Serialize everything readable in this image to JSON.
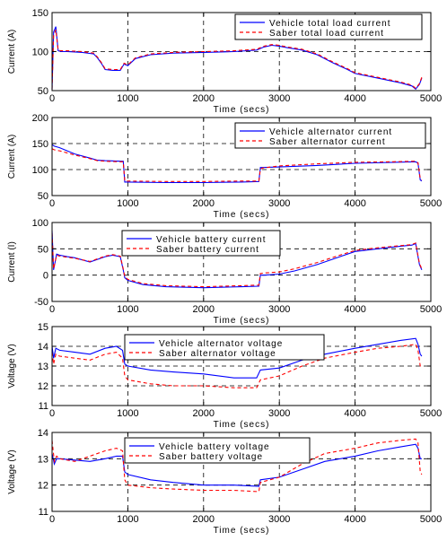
{
  "chart_data": [
    {
      "type": "line",
      "xlabel": "Time (secs)",
      "ylabel": "Current (A)",
      "xlim": [
        0,
        5000
      ],
      "ylim": [
        50,
        150
      ],
      "xticks": [
        0,
        1000,
        2000,
        3000,
        4000,
        5000
      ],
      "yticks": [
        50,
        100,
        150
      ],
      "grid": "dashed",
      "legend_position": "top-right",
      "series": [
        {
          "name": "Vehicle total load current",
          "color": "#0000ff",
          "style": "solid",
          "x": [
            0,
            20,
            50,
            80,
            120,
            200,
            400,
            550,
            600,
            650,
            700,
            800,
            900,
            950,
            1000,
            1100,
            1300,
            1600,
            2000,
            2400,
            2700,
            2800,
            2900,
            3000,
            3100,
            3300,
            3500,
            3700,
            3900,
            4000,
            4300,
            4600,
            4750,
            4800,
            4850,
            4880
          ],
          "y": [
            52,
            125,
            132,
            101,
            100,
            100,
            99,
            97,
            92,
            85,
            77,
            76,
            76,
            84,
            82,
            91,
            96,
            98,
            99,
            100,
            102,
            106,
            108,
            107,
            105,
            102,
            96,
            86,
            77,
            72,
            66,
            60,
            56,
            52,
            58,
            66
          ]
        },
        {
          "name": "Saber total load current",
          "color": "#ff0000",
          "style": "dashed",
          "x": [
            0,
            20,
            50,
            80,
            120,
            200,
            400,
            550,
            600,
            650,
            700,
            800,
            900,
            950,
            1000,
            1100,
            1300,
            1600,
            2000,
            2400,
            2700,
            2800,
            2900,
            3000,
            3100,
            3300,
            3500,
            3700,
            3900,
            4000,
            4300,
            4600,
            4750,
            4800,
            4850,
            4880
          ],
          "y": [
            52,
            120,
            128,
            102,
            101,
            101,
            100,
            98,
            93,
            86,
            78,
            77,
            77,
            85,
            83,
            92,
            97,
            99,
            100,
            101,
            103,
            107,
            109,
            108,
            106,
            103,
            97,
            87,
            78,
            73,
            67,
            61,
            57,
            53,
            59,
            67
          ]
        }
      ]
    },
    {
      "type": "line",
      "xlabel": "Time (secs)",
      "ylabel": "Current (A)",
      "xlim": [
        0,
        5000
      ],
      "ylim": [
        50,
        200
      ],
      "xticks": [
        0,
        1000,
        2000,
        3000,
        4000,
        5000
      ],
      "yticks": [
        50,
        100,
        150,
        200
      ],
      "grid": "dashed",
      "legend_position": "top-right",
      "series": [
        {
          "name": "Vehicle alternator current",
          "color": "#0000ff",
          "style": "solid",
          "x": [
            0,
            30,
            100,
            300,
            500,
            600,
            700,
            900,
            940,
            960,
            1000,
            1500,
            2000,
            2500,
            2730,
            2750,
            2780,
            3000,
            3500,
            4000,
            4500,
            4800,
            4830,
            4860,
            4880
          ],
          "y": [
            148,
            145,
            142,
            130,
            122,
            118,
            117,
            116,
            116,
            76,
            76,
            75,
            75,
            76,
            77,
            104,
            104,
            105,
            108,
            112,
            114,
            115,
            112,
            80,
            78
          ]
        },
        {
          "name": "Saber alternator current",
          "color": "#ff0000",
          "style": "dashed",
          "x": [
            0,
            30,
            100,
            300,
            500,
            600,
            700,
            900,
            940,
            960,
            1000,
            1500,
            2000,
            2500,
            2730,
            2750,
            2780,
            3000,
            3500,
            4000,
            4500,
            4800,
            4830,
            4860,
            4880
          ],
          "y": [
            140,
            138,
            136,
            128,
            121,
            117,
            116,
            115,
            115,
            78,
            78,
            77,
            77,
            78,
            78,
            101,
            103,
            107,
            111,
            114,
            115,
            116,
            113,
            82,
            80
          ]
        }
      ]
    },
    {
      "type": "line",
      "xlabel": "Time (secs)",
      "ylabel": "Current (I)",
      "xlim": [
        0,
        5000
      ],
      "ylim": [
        -50,
        100
      ],
      "xticks": [
        0,
        1000,
        2000,
        3000,
        4000,
        5000
      ],
      "yticks": [
        -50,
        0,
        50,
        100
      ],
      "grid": "dashed",
      "legend_position": "top-center",
      "series": [
        {
          "name": "Vehicle battery current",
          "color": "#0000ff",
          "style": "solid",
          "x": [
            0,
            20,
            60,
            100,
            200,
            300,
            500,
            600,
            700,
            800,
            900,
            940,
            960,
            1000,
            1200,
            1500,
            2000,
            2500,
            2730,
            2750,
            2800,
            3000,
            3200,
            3500,
            3800,
            4000,
            4300,
            4600,
            4750,
            4800,
            4850,
            4880
          ],
          "y": [
            85,
            10,
            40,
            38,
            35,
            33,
            25,
            30,
            35,
            38,
            35,
            10,
            -5,
            -10,
            -18,
            -22,
            -24,
            -22,
            -21,
            0,
            0,
            2,
            8,
            20,
            35,
            45,
            50,
            55,
            57,
            60,
            20,
            10
          ]
        },
        {
          "name": "Saber battery current",
          "color": "#ff0000",
          "style": "dashed",
          "x": [
            0,
            20,
            60,
            100,
            200,
            300,
            500,
            600,
            700,
            800,
            900,
            940,
            960,
            1000,
            1200,
            1500,
            2000,
            2500,
            2730,
            2750,
            2800,
            3000,
            3200,
            3500,
            3800,
            4000,
            4300,
            4600,
            4750,
            4800,
            4850,
            4880
          ],
          "y": [
            80,
            12,
            38,
            36,
            34,
            32,
            26,
            31,
            36,
            39,
            36,
            12,
            -3,
            -8,
            -16,
            -20,
            -22,
            -20,
            -19,
            3,
            4,
            6,
            12,
            24,
            38,
            47,
            52,
            56,
            58,
            61,
            22,
            12
          ]
        }
      ]
    },
    {
      "type": "line",
      "xlabel": "Time (secs)",
      "ylabel": "Voltage (V)",
      "xlim": [
        0,
        5000
      ],
      "ylim": [
        11,
        15
      ],
      "xticks": [
        0,
        1000,
        2000,
        3000,
        4000,
        5000
      ],
      "yticks": [
        11,
        12,
        13,
        14,
        15
      ],
      "grid": "dashed",
      "legend_position": "top-center",
      "series": [
        {
          "name": "Vehicle alternator voltage",
          "color": "#0000ff",
          "style": "solid",
          "x": [
            0,
            20,
            50,
            100,
            300,
            500,
            700,
            850,
            930,
            960,
            1000,
            1300,
            1600,
            2000,
            2400,
            2700,
            2750,
            3000,
            3300,
            3600,
            4000,
            4300,
            4600,
            4800,
            4830,
            4860,
            4880
          ],
          "y": [
            14.0,
            13.4,
            13.9,
            13.8,
            13.7,
            13.6,
            13.9,
            14.0,
            13.8,
            13.1,
            13.0,
            12.8,
            12.7,
            12.6,
            12.4,
            12.4,
            12.8,
            12.9,
            13.3,
            13.6,
            13.9,
            14.1,
            14.3,
            14.4,
            14.1,
            13.6,
            13.5
          ]
        },
        {
          "name": "Saber alternator voltage",
          "color": "#ff0000",
          "style": "dashed",
          "x": [
            0,
            20,
            50,
            100,
            300,
            500,
            700,
            850,
            930,
            960,
            1000,
            1300,
            1600,
            2000,
            2400,
            2700,
            2750,
            3000,
            3300,
            3600,
            4000,
            4300,
            4600,
            4800,
            4830,
            4860,
            4880
          ],
          "y": [
            13.7,
            13.1,
            13.6,
            13.5,
            13.4,
            13.3,
            13.6,
            13.7,
            13.4,
            12.5,
            12.3,
            12.1,
            12.0,
            12.0,
            11.9,
            11.9,
            12.3,
            12.5,
            13.0,
            13.4,
            13.7,
            13.9,
            14.0,
            14.1,
            13.8,
            13.0,
            12.9
          ]
        }
      ]
    },
    {
      "type": "line",
      "xlabel": "Time (secs)",
      "ylabel": "Voltage (V)",
      "xlim": [
        0,
        5000
      ],
      "ylim": [
        11,
        14
      ],
      "xticks": [
        0,
        1000,
        2000,
        3000,
        4000,
        5000
      ],
      "yticks": [
        11,
        12,
        13,
        14
      ],
      "grid": "dashed",
      "legend_position": "top-center",
      "series": [
        {
          "name": "Vehicle battery voltage",
          "color": "#0000ff",
          "style": "solid",
          "x": [
            0,
            30,
            60,
            100,
            300,
            500,
            700,
            850,
            930,
            960,
            1000,
            1300,
            1600,
            2000,
            2400,
            2730,
            2750,
            3000,
            3300,
            3600,
            4000,
            4300,
            4600,
            4800,
            4830,
            4860,
            4880
          ],
          "y": [
            13.2,
            12.8,
            13.0,
            13.0,
            12.95,
            12.9,
            13.0,
            13.1,
            13.1,
            12.5,
            12.4,
            12.2,
            12.1,
            12.0,
            12.0,
            11.95,
            12.2,
            12.3,
            12.6,
            12.9,
            13.1,
            13.3,
            13.45,
            13.55,
            13.4,
            13.0,
            13.0
          ]
        },
        {
          "name": "Saber battery voltage",
          "color": "#ff0000",
          "style": "dashed",
          "x": [
            0,
            30,
            60,
            100,
            300,
            500,
            700,
            850,
            930,
            960,
            1000,
            1300,
            1600,
            2000,
            2400,
            2730,
            2750,
            3000,
            3300,
            3600,
            4000,
            4300,
            4600,
            4800,
            4830,
            4860,
            4880
          ],
          "y": [
            13.7,
            12.9,
            13.1,
            13.0,
            12.9,
            13.1,
            13.3,
            13.4,
            13.3,
            12.2,
            12.0,
            11.9,
            11.85,
            11.8,
            11.8,
            11.75,
            12.1,
            12.3,
            12.8,
            13.2,
            13.4,
            13.6,
            13.7,
            13.75,
            13.6,
            12.5,
            12.4
          ]
        }
      ]
    }
  ]
}
